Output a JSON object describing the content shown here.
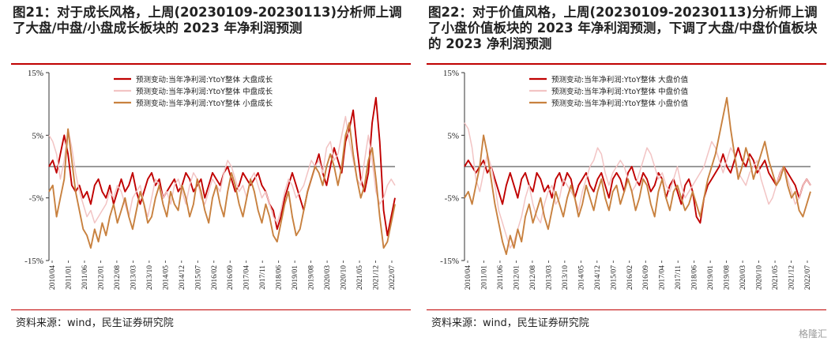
{
  "panels": [
    {
      "title": "图21：对于成长风格，上周(20230109-20230113)分析师上调了大盘/中盘/小盘成长板块的 2023 年净利润预测",
      "source": "资料来源：wind，民生证券研究院"
    },
    {
      "title": "图22：对于价值风格，上周(20230109-20230113)分析师上调了小盘价值板块的 2023 年净利润预测，下调了大盘/中盘价值板块的 2023 净利润预测",
      "source": "资料来源：wind，民生证券研究院"
    }
  ],
  "watermark": "格隆汇",
  "colors": {
    "rule": "#c00000"
  },
  "chart_data": [
    {
      "type": "line",
      "x_ticks": [
        "2010/04",
        "2011/01",
        "2011/06",
        "2012/01",
        "2012/08",
        "2013/03",
        "2013/10",
        "2014/05",
        "2014/12",
        "2015/07",
        "2016/02",
        "2016/09",
        "2017/04",
        "2017/11",
        "2018/06",
        "2019/01",
        "2019/08",
        "2020/03",
        "2020/10",
        "2021/05",
        "2021/12",
        "2022/07"
      ],
      "y_ticks": [
        "15%",
        "5%",
        "-5%",
        "-15%"
      ],
      "ylim": [
        -15,
        15
      ],
      "series": [
        {
          "name": "预测变动:当年净利润:YtoY整体 大盘成长",
          "color": "#c00000",
          "width": 1.9,
          "values": [
            0,
            1,
            -1,
            2,
            5,
            2,
            -3,
            -4,
            -3,
            -5,
            -4,
            -6,
            -3,
            -2,
            -4,
            -5,
            -3,
            -6,
            -4,
            -2,
            -4,
            -3,
            -1,
            -4,
            -6,
            -4,
            -2,
            -1,
            -3,
            -2,
            -5,
            -4,
            -3,
            -2,
            -4,
            -3,
            -1,
            -2,
            -4,
            -3,
            -2,
            -5,
            -3,
            -1,
            -2,
            -3,
            -1,
            0,
            -2,
            -4,
            -3,
            -1,
            -2,
            -3,
            -2,
            -1,
            -3,
            -4,
            -6,
            -7,
            -10,
            -8,
            -5,
            -3,
            -1,
            -3,
            -5,
            -7,
            -4,
            -2,
            0,
            2,
            -1,
            -3,
            0,
            3,
            1,
            -1,
            4,
            6,
            9,
            3,
            -2,
            -4,
            -1,
            7,
            11,
            4,
            -7,
            -11,
            -8,
            -5
          ]
        },
        {
          "name": "预测变动:当年净利润:YtoY整体 中盘成长",
          "color": "#f2c4c4",
          "width": 1.5,
          "values": [
            5,
            4,
            2,
            -2,
            1,
            6,
            3,
            -1,
            -4,
            -6,
            -8,
            -7,
            -9,
            -8,
            -7,
            -6,
            -4,
            -5,
            -3,
            -4,
            -6,
            -8,
            -5,
            -4,
            -3,
            -6,
            -8,
            -5,
            -2,
            -3,
            -5,
            -4,
            -6,
            -3,
            -2,
            -4,
            -6,
            -3,
            -1,
            -2,
            -5,
            -6,
            -4,
            -2,
            -3,
            -4,
            -1,
            1,
            0,
            -2,
            -4,
            -3,
            -5,
            -2,
            -1,
            -3,
            -5,
            -4,
            -6,
            -8,
            -9,
            -7,
            -4,
            -2,
            -3,
            -5,
            -4,
            -3,
            -1,
            1,
            0,
            1,
            -1,
            3,
            4,
            1,
            2,
            5,
            8,
            4,
            1,
            -2,
            -3,
            1,
            5,
            1,
            -4,
            -6,
            -5,
            -3,
            -2,
            -3
          ]
        },
        {
          "name": "预测变动:当年净利润:YtoY整体 小盘成长",
          "color": "#c8813f",
          "width": 1.9,
          "values": [
            -4,
            -3,
            -8,
            -5,
            -2,
            6,
            1,
            -4,
            -7,
            -10,
            -11,
            -13,
            -10,
            -12,
            -9,
            -11,
            -8,
            -6,
            -9,
            -7,
            -5,
            -8,
            -10,
            -7,
            -4,
            -6,
            -9,
            -8,
            -5,
            -3,
            -6,
            -8,
            -4,
            -6,
            -7,
            -3,
            -5,
            -8,
            -6,
            -2,
            -4,
            -7,
            -9,
            -5,
            -3,
            -6,
            -8,
            -4,
            -1,
            -3,
            -6,
            -8,
            -5,
            -2,
            -4,
            -7,
            -9,
            -6,
            -8,
            -11,
            -12,
            -9,
            -6,
            -4,
            -8,
            -11,
            -10,
            -7,
            -4,
            -2,
            0,
            -1,
            -3,
            0,
            2,
            0,
            -3,
            0,
            5,
            7,
            2,
            -2,
            -5,
            -3,
            1,
            3,
            -2,
            -8,
            -13,
            -12,
            -9,
            -6
          ]
        }
      ]
    },
    {
      "type": "line",
      "x_ticks": [
        "2010/04",
        "2011/01",
        "2011/06",
        "2012/01",
        "2012/08",
        "2013/03",
        "2013/10",
        "2014/05",
        "2014/12",
        "2015/07",
        "2016/02",
        "2016/09",
        "2017/04",
        "2017/11",
        "2018/06",
        "2019/01",
        "2019/08",
        "2020/03",
        "2020/10",
        "2021/05",
        "2021/12",
        "2022/07"
      ],
      "y_ticks": [
        "15%",
        "5%",
        "-5%",
        "-15%"
      ],
      "ylim": [
        -15,
        15
      ],
      "series": [
        {
          "name": "预测变动:当年净利润:YtoY整体 大盘价值",
          "color": "#c00000",
          "width": 1.9,
          "values": [
            0,
            1,
            0,
            -1,
            0,
            1,
            -1,
            0,
            -2,
            -4,
            -6,
            -3,
            -1,
            -3,
            -5,
            -2,
            -1,
            -3,
            -4,
            -1,
            -2,
            -4,
            -3,
            -5,
            -2,
            -1,
            -3,
            -1,
            -2,
            -5,
            -3,
            -2,
            -1,
            -3,
            -4,
            -2,
            -1,
            -3,
            -5,
            -2,
            -1,
            -2,
            -4,
            -1,
            0,
            -2,
            -3,
            -1,
            -2,
            -4,
            -3,
            -1,
            -2,
            -5,
            -3,
            -2,
            -4,
            -6,
            -3,
            -2,
            -4,
            -8,
            -9,
            -5,
            -3,
            -2,
            -1,
            0,
            2,
            0,
            -1,
            1,
            3,
            1,
            0,
            2,
            1,
            -1,
            0,
            1,
            -1,
            -2,
            -3,
            -1,
            0,
            -1,
            -2,
            -3,
            -5,
            -3,
            -2,
            -3
          ]
        },
        {
          "name": "预测变动:当年净利润:YtoY整体 中盘价值",
          "color": "#f2c4c4",
          "width": 1.5,
          "values": [
            7,
            6,
            3,
            -2,
            -4,
            -1,
            2,
            0,
            -3,
            -7,
            -9,
            -11,
            -13,
            -12,
            -10,
            -8,
            -5,
            -3,
            -6,
            -8,
            -9,
            -6,
            -4,
            -3,
            -6,
            -5,
            -2,
            -3,
            -4,
            -5,
            -7,
            -4,
            -2,
            0,
            1,
            3,
            2,
            -1,
            -3,
            -1,
            0,
            1,
            0,
            -2,
            -4,
            -3,
            -1,
            1,
            3,
            2,
            0,
            -2,
            -1,
            -3,
            -4,
            -2,
            0,
            -3,
            -5,
            -4,
            -3,
            -2,
            -1,
            0,
            2,
            4,
            3,
            1,
            -1,
            1,
            3,
            2,
            -1,
            -2,
            -3,
            -1,
            0,
            1,
            -2,
            -4,
            -6,
            -5,
            -3,
            -1,
            0,
            -2,
            -4,
            -6,
            -5,
            -3,
            -2,
            -3
          ]
        },
        {
          "name": "预测变动:当年净利润:YtoY整体 小盘价值",
          "color": "#c8813f",
          "width": 1.9,
          "values": [
            -5,
            -4,
            -6,
            -3,
            0,
            5,
            2,
            -2,
            -6,
            -9,
            -12,
            -14,
            -11,
            -13,
            -10,
            -12,
            -8,
            -6,
            -9,
            -7,
            -5,
            -8,
            -10,
            -7,
            -4,
            -6,
            -8,
            -5,
            -3,
            -5,
            -8,
            -6,
            -3,
            -5,
            -7,
            -4,
            -2,
            -5,
            -7,
            -4,
            -3,
            -6,
            -4,
            -2,
            -4,
            -7,
            -5,
            -2,
            -3,
            -6,
            -8,
            -4,
            -2,
            -5,
            -7,
            -4,
            -3,
            -5,
            -7,
            -6,
            -4,
            -6,
            -8,
            -5,
            -2,
            0,
            2,
            5,
            8,
            11,
            6,
            2,
            -2,
            0,
            3,
            1,
            -2,
            0,
            2,
            4,
            1,
            -1,
            -3,
            -2,
            0,
            -3,
            -5,
            -4,
            -7,
            -8,
            -6,
            -4
          ]
        }
      ]
    }
  ]
}
